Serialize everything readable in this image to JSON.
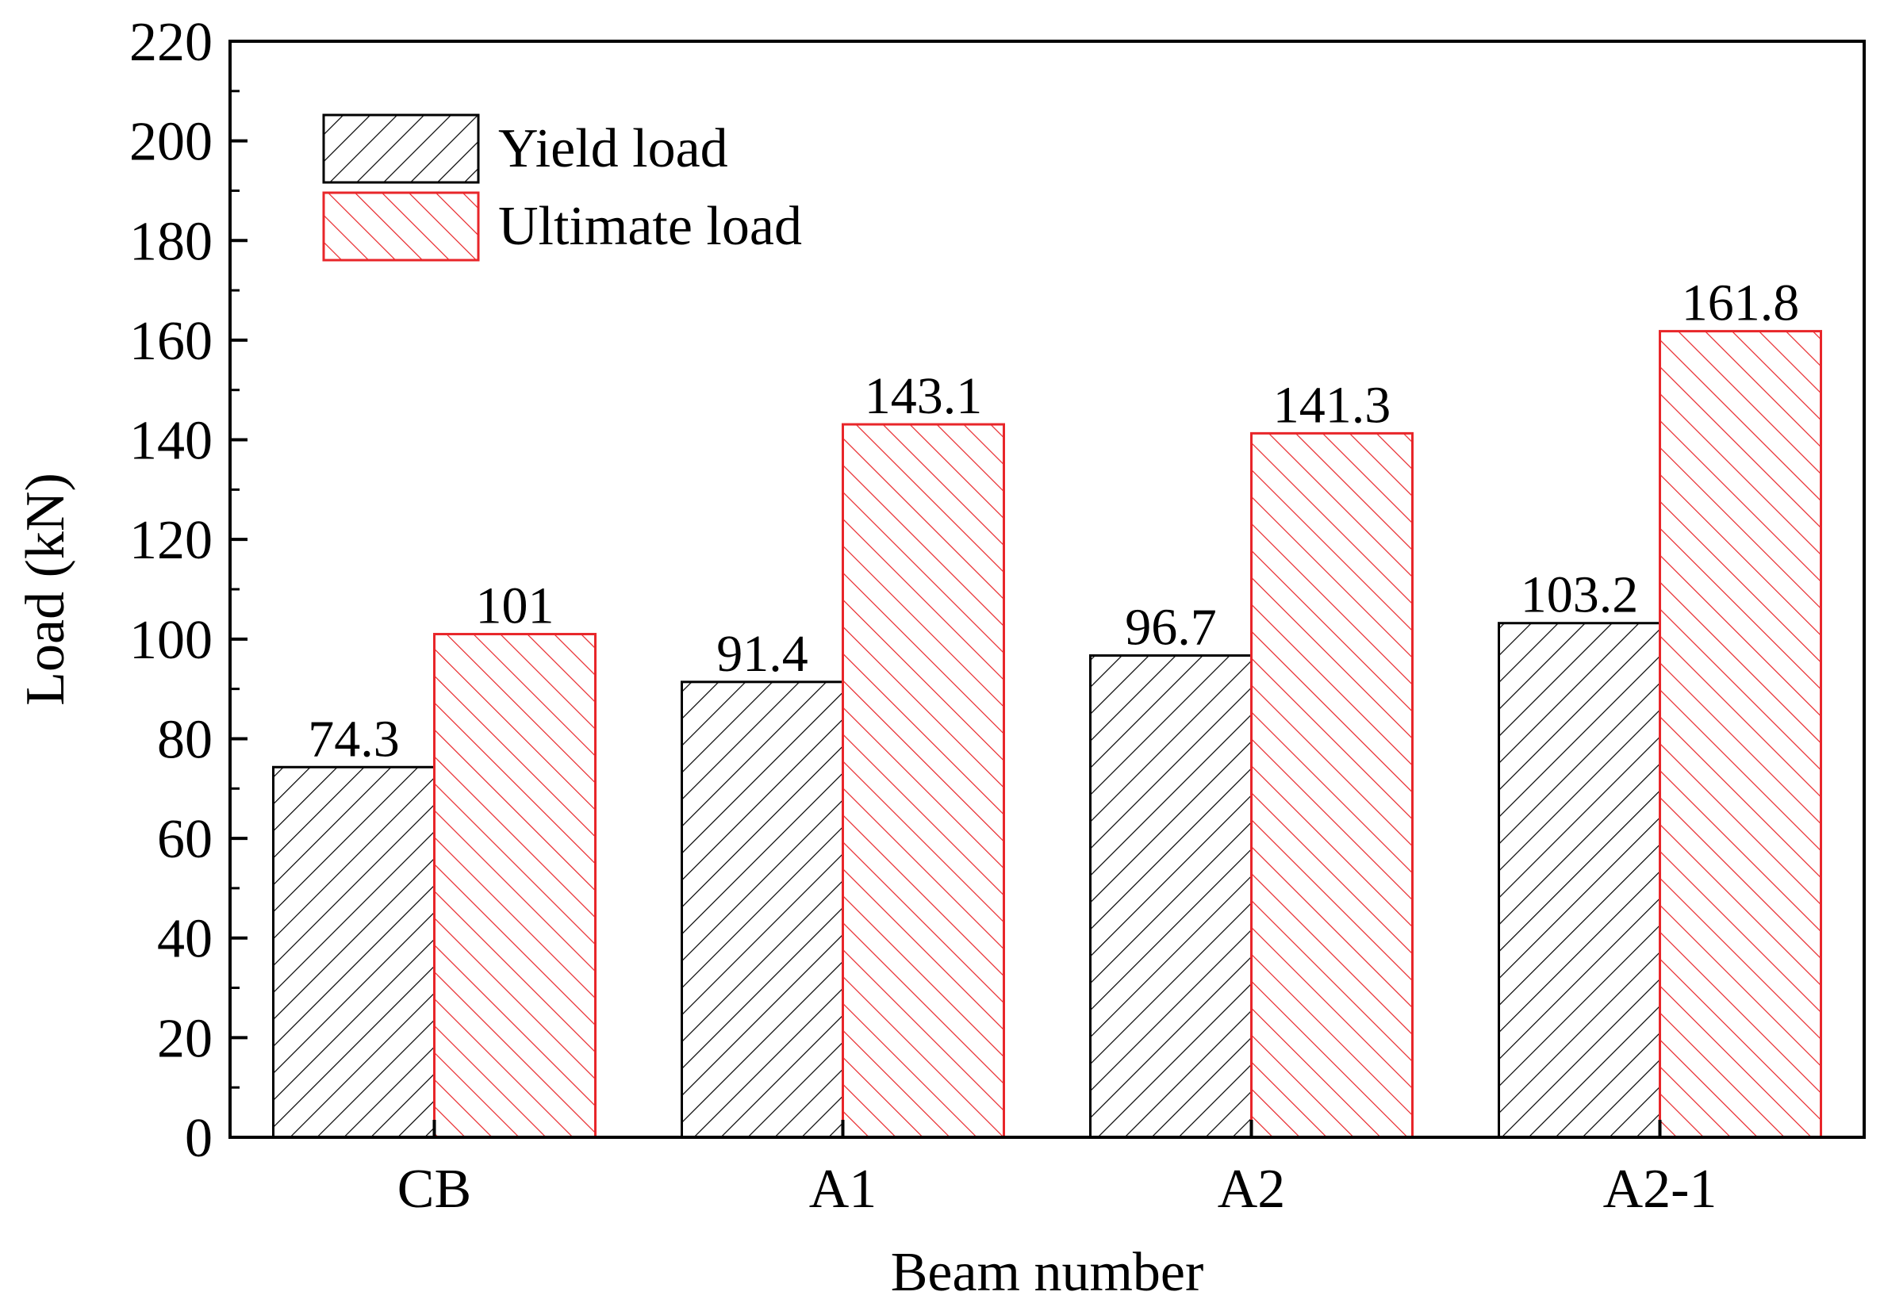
{
  "chart_data": {
    "type": "bar",
    "title": "",
    "xlabel": "Beam number",
    "ylabel": "Load (kN)",
    "ylim": [
      0,
      220
    ],
    "yticks": [
      0,
      20,
      40,
      60,
      80,
      100,
      120,
      140,
      160,
      180,
      200,
      220
    ],
    "categories": [
      "CB",
      "A1",
      "A2",
      "A2-1"
    ],
    "series": [
      {
        "name": "Yield load",
        "values": [
          74.3,
          91.4,
          96.7,
          103.2
        ],
        "labels": [
          "74.3",
          "91.4",
          "96.7",
          "103.2"
        ],
        "color": "#000000",
        "hatch": "forward-diagonal"
      },
      {
        "name": "Ultimate load",
        "values": [
          101,
          143.1,
          141.3,
          161.8
        ],
        "labels": [
          "101",
          "143.1",
          "141.3",
          "161.8"
        ],
        "color": "#e8262a",
        "hatch": "backward-diagonal"
      }
    ],
    "legend": {
      "position": "top-left"
    },
    "grid": false
  }
}
